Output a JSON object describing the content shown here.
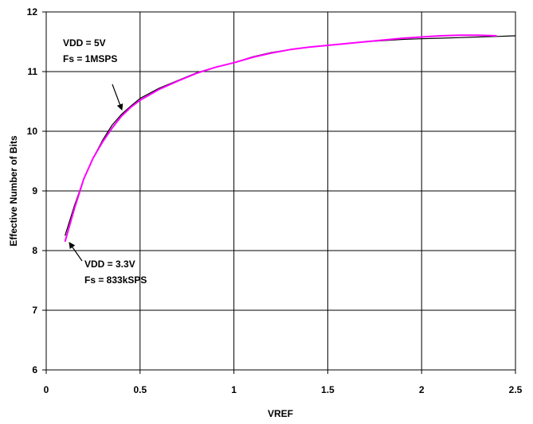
{
  "chart_data": {
    "type": "line",
    "title": "",
    "xlabel": "VREF",
    "ylabel": "Effective Number of Bits",
    "xlim": [
      0,
      2.5
    ],
    "ylim": [
      6,
      12
    ],
    "x_ticks": [
      "0",
      "0.5",
      "1",
      "1.5",
      "2",
      "2.5"
    ],
    "y_ticks": [
      "6",
      "7",
      "8",
      "9",
      "10",
      "11",
      "12"
    ],
    "grid": true,
    "legend": "none",
    "series": [
      {
        "color": "#000000",
        "x": [
          0.1,
          0.15,
          0.2,
          0.25,
          0.3,
          0.35,
          0.4,
          0.45,
          0.5,
          0.6,
          0.7,
          0.8,
          0.9,
          1.0,
          1.1,
          1.2,
          1.3,
          1.4,
          1.5,
          1.6,
          1.7,
          1.8,
          1.9,
          2.0,
          2.1,
          2.2,
          2.3,
          2.4,
          2.5
        ],
        "y": [
          8.25,
          8.75,
          9.2,
          9.55,
          9.85,
          10.1,
          10.28,
          10.42,
          10.55,
          10.72,
          10.85,
          10.98,
          11.07,
          11.15,
          11.25,
          11.32,
          11.37,
          11.41,
          11.44,
          11.47,
          11.5,
          11.52,
          11.54,
          11.55,
          11.56,
          11.57,
          11.58,
          11.59,
          11.6
        ]
      },
      {
        "color": "#ff00ff",
        "x": [
          0.1,
          0.15,
          0.2,
          0.25,
          0.3,
          0.35,
          0.4,
          0.45,
          0.5,
          0.6,
          0.7,
          0.8,
          0.9,
          1.0,
          1.1,
          1.2,
          1.3,
          1.4,
          1.5,
          1.6,
          1.7,
          1.8,
          1.9,
          2.0,
          2.1,
          2.2,
          2.3,
          2.4
        ],
        "y": [
          8.15,
          8.7,
          9.2,
          9.55,
          9.82,
          10.05,
          10.25,
          10.4,
          10.52,
          10.7,
          10.84,
          10.97,
          11.07,
          11.15,
          11.24,
          11.31,
          11.37,
          11.41,
          11.44,
          11.47,
          11.5,
          11.53,
          11.56,
          11.58,
          11.6,
          11.61,
          11.61,
          11.6
        ]
      }
    ],
    "annotations": [
      {
        "lines": [
          "VDD = 5V",
          "Fs = 1MSPS"
        ],
        "arrow_to": [
          0.42,
          10.37
        ]
      },
      {
        "lines": [
          "VDD = 3.3V",
          "Fs = 833kSPS"
        ],
        "arrow_to": [
          0.1,
          8.18
        ]
      }
    ]
  }
}
